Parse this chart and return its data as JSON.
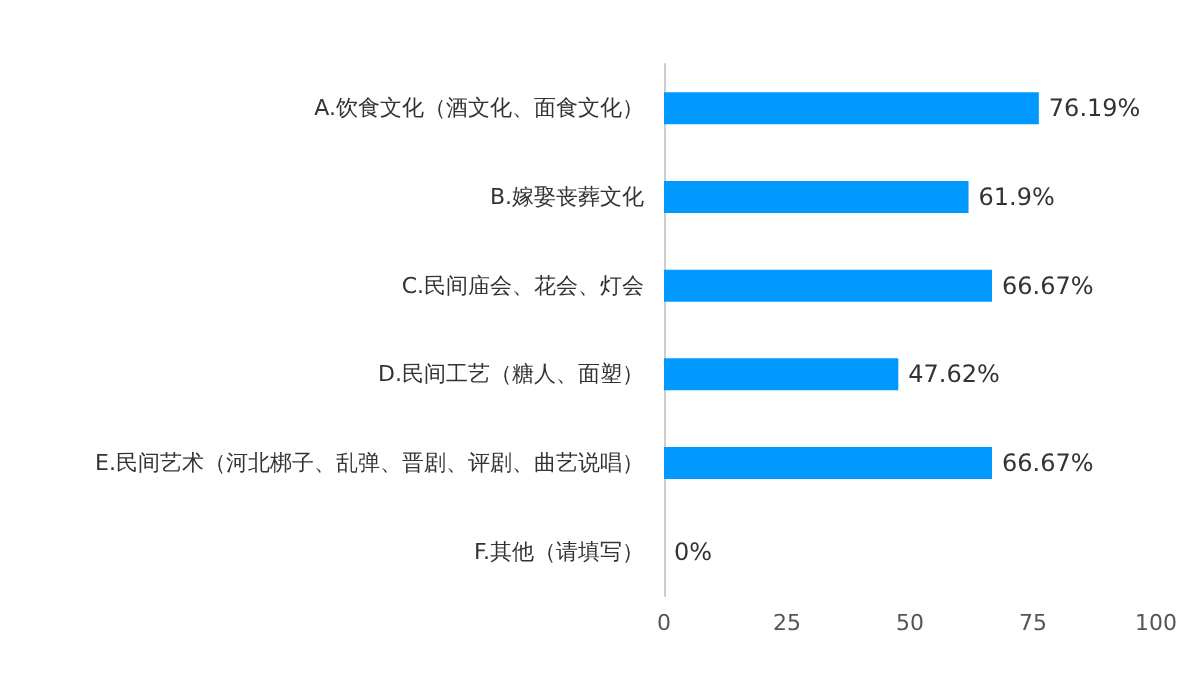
{
  "chart_data": {
    "type": "bar",
    "orientation": "horizontal",
    "categories": [
      "A.饮食文化（酒文化、面食文化）",
      "B.嫁娶丧葬文化",
      "C.民间庙会、花会、灯会",
      "D.民间工艺（糖人、面塑）",
      "E.民间艺术（河北梆子、乱弹、晋剧、评剧、曲艺说唱）",
      "F.其他（请填写）"
    ],
    "values": [
      76.19,
      61.9,
      66.67,
      47.62,
      66.67,
      0
    ],
    "value_labels": [
      "76.19%",
      "61.9%",
      "66.67%",
      "47.62%",
      "66.67%",
      "0%"
    ],
    "color": "#0099ff",
    "xlim": [
      0,
      100
    ],
    "xticks": [
      0,
      25,
      50,
      75,
      100
    ],
    "grid": false
  }
}
